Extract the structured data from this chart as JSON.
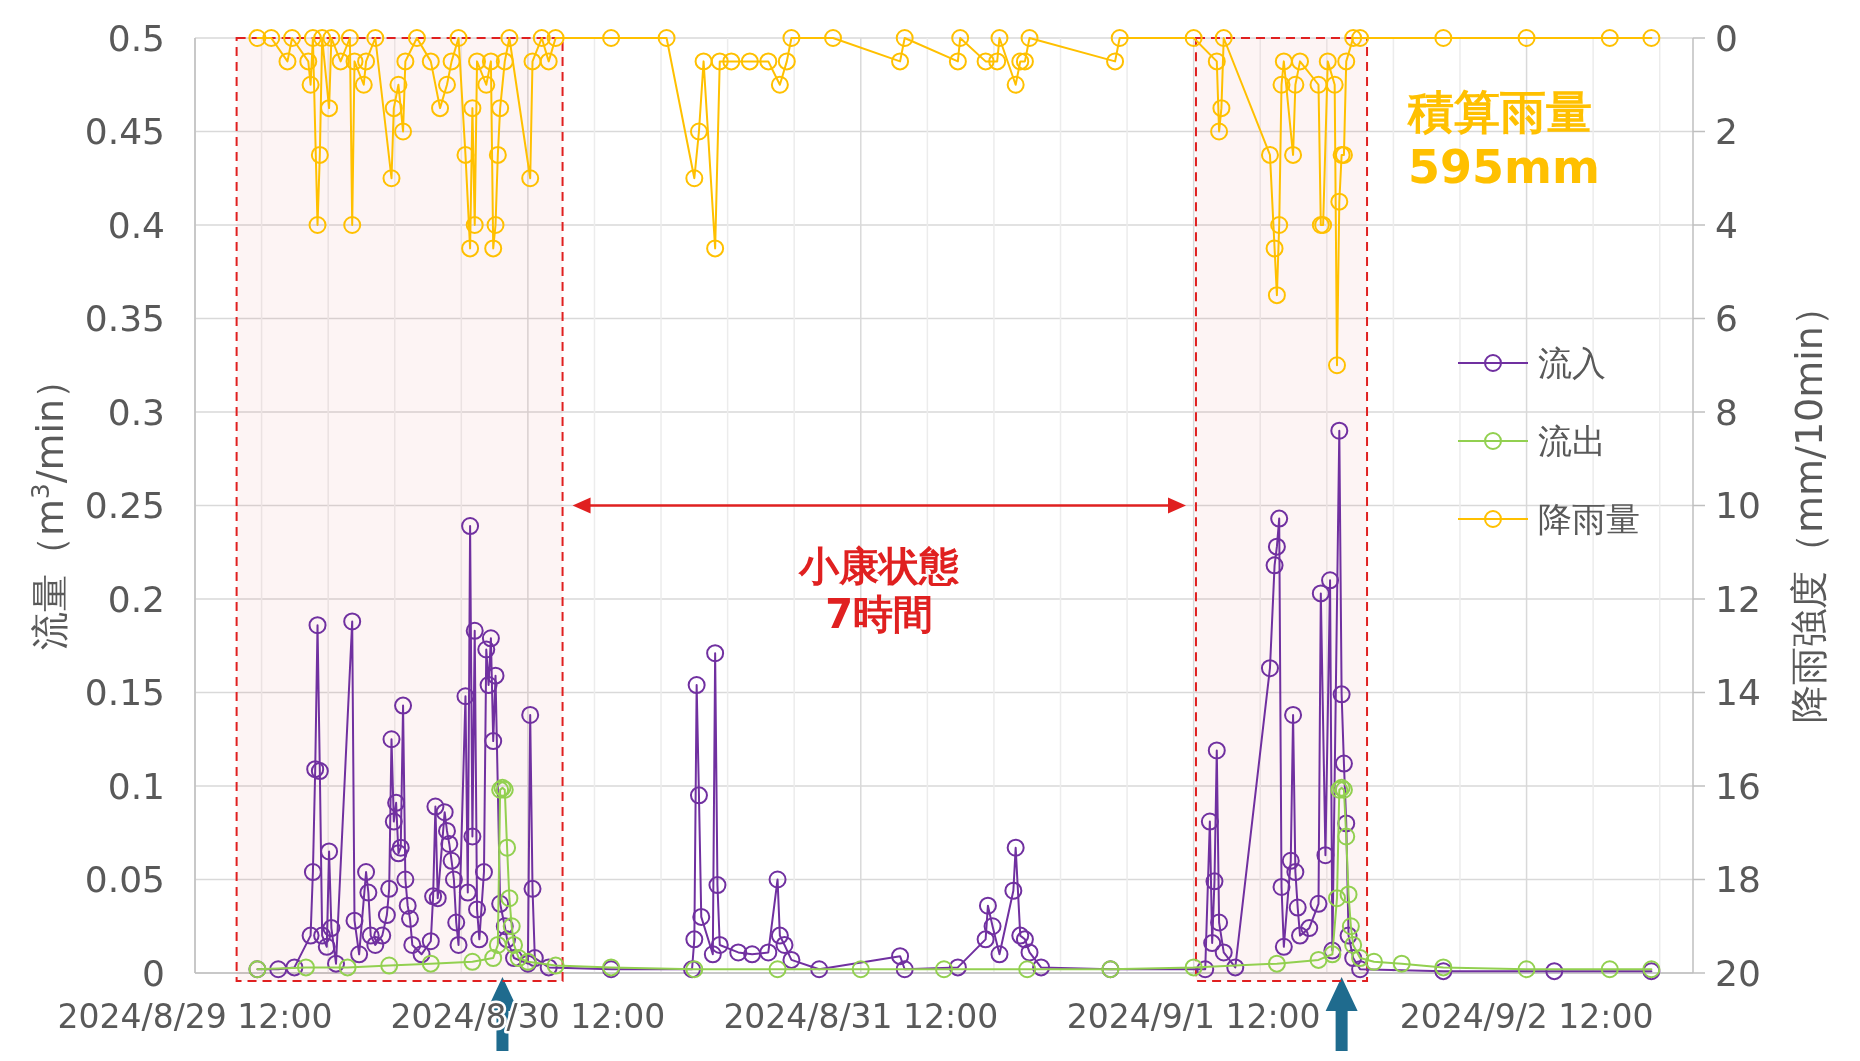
{
  "chart_data": {
    "type": "line",
    "xlabel": null,
    "ylabel": "流量（m$^{3}$/min）",
    "y2label": "降雨強度（mm/10min）",
    "xlim": [
      "2024-08-29T12:00",
      "2024-09-03T00:00"
    ],
    "xticks": [
      {
        "value": "2024-08-29T12:00",
        "label": "2024/8/29 12:00"
      },
      {
        "value": "2024-08-29T16:48",
        "label": null
      },
      {
        "value": "2024-08-29T21:36",
        "label": null
      },
      {
        "value": "2024-08-30T02:24",
        "label": null
      },
      {
        "value": "2024-08-30T07:12",
        "label": null
      },
      {
        "value": "2024-08-30T12:00",
        "label": "2024/8/30 12:00"
      },
      {
        "value": "2024-08-30T16:48",
        "label": null
      },
      {
        "value": "2024-08-30T21:36",
        "label": null
      },
      {
        "value": "2024-08-31T02:24",
        "label": null
      },
      {
        "value": "2024-08-31T07:12",
        "label": null
      },
      {
        "value": "2024-08-31T12:00",
        "label": "2024/8/31 12:00"
      },
      {
        "value": "2024-08-31T16:48",
        "label": null
      },
      {
        "value": "2024-08-31T21:36",
        "label": null
      },
      {
        "value": "2024-09-01T02:24",
        "label": null
      },
      {
        "value": "2024-09-01T07:12",
        "label": null
      },
      {
        "value": "2024-09-01T12:00",
        "label": "2024/9/1 12:00"
      },
      {
        "value": "2024-09-01T16:48",
        "label": null
      },
      {
        "value": "2024-09-01T21:36",
        "label": null
      },
      {
        "value": "2024-09-02T02:24",
        "label": null
      },
      {
        "value": "2024-09-02T07:12",
        "label": null
      },
      {
        "value": "2024-09-02T12:00",
        "label": "2024/9/2 12:00"
      },
      {
        "value": "2024-09-02T16:48",
        "label": null
      },
      {
        "value": "2024-09-02T21:36",
        "label": null
      }
    ],
    "ylim": [
      0,
      0.5
    ],
    "yticks": [
      0,
      0.05,
      0.1,
      0.15,
      0.2,
      0.25,
      0.3,
      0.35,
      0.4,
      0.45,
      0.5
    ],
    "y2lim": [
      20,
      0
    ],
    "y2ticks": [
      0,
      2,
      4,
      6,
      8,
      10,
      12,
      14,
      16,
      18,
      20
    ],
    "grid": true,
    "legend": "right",
    "marker": "circle",
    "line_style": "solid",
    "series": [
      {
        "name": "流入",
        "color": "#7030a0",
        "x": [
          "2024-08-29T16:30",
          "2024-08-29T18:00",
          "2024-08-29T19:10",
          "2024-08-29T20:20",
          "2024-08-29T20:30",
          "2024-08-29T20:40",
          "2024-08-29T20:50",
          "2024-08-29T21:00",
          "2024-08-29T21:10",
          "2024-08-29T21:30",
          "2024-08-29T21:40",
          "2024-08-29T21:50",
          "2024-08-29T22:10",
          "2024-08-29T23:20",
          "2024-08-29T23:30",
          "2024-08-29T23:50",
          "2024-08-30T00:20",
          "2024-08-30T00:30",
          "2024-08-30T00:40",
          "2024-08-30T01:00",
          "2024-08-30T01:30",
          "2024-08-30T01:50",
          "2024-08-30T02:00",
          "2024-08-30T02:10",
          "2024-08-30T02:20",
          "2024-08-30T02:30",
          "2024-08-30T02:40",
          "2024-08-30T02:50",
          "2024-08-30T03:00",
          "2024-08-30T03:10",
          "2024-08-30T03:20",
          "2024-08-30T03:30",
          "2024-08-30T03:40",
          "2024-08-30T04:20",
          "2024-08-30T05:00",
          "2024-08-30T05:10",
          "2024-08-30T05:20",
          "2024-08-30T05:30",
          "2024-08-30T06:00",
          "2024-08-30T06:10",
          "2024-08-30T06:20",
          "2024-08-30T06:30",
          "2024-08-30T06:40",
          "2024-08-30T06:50",
          "2024-08-30T07:00",
          "2024-08-30T07:30",
          "2024-08-30T07:40",
          "2024-08-30T07:50",
          "2024-08-30T08:00",
          "2024-08-30T08:10",
          "2024-08-30T08:20",
          "2024-08-30T08:30",
          "2024-08-30T08:50",
          "2024-08-30T09:00",
          "2024-08-30T09:10",
          "2024-08-30T09:20",
          "2024-08-30T09:30",
          "2024-08-30T09:40",
          "2024-08-30T10:00",
          "2024-08-30T10:20",
          "2024-08-30T10:30",
          "2024-08-30T11:00",
          "2024-08-30T12:00",
          "2024-08-30T12:10",
          "2024-08-30T12:20",
          "2024-08-30T12:30",
          "2024-08-30T13:30",
          "2024-08-30T18:00",
          "2024-08-30T23:50",
          "2024-08-31T00:00",
          "2024-08-31T00:10",
          "2024-08-31T00:20",
          "2024-08-31T00:30",
          "2024-08-31T01:20",
          "2024-08-31T01:30",
          "2024-08-31T01:40",
          "2024-08-31T01:50",
          "2024-08-31T03:10",
          "2024-08-31T04:10",
          "2024-08-31T05:20",
          "2024-08-31T06:00",
          "2024-08-31T06:10",
          "2024-08-31T06:30",
          "2024-08-31T07:00",
          "2024-08-31T09:00",
          "2024-08-31T14:50",
          "2024-08-31T15:10",
          "2024-08-31T19:00",
          "2024-08-31T21:00",
          "2024-08-31T21:10",
          "2024-08-31T21:30",
          "2024-08-31T22:00",
          "2024-08-31T23:00",
          "2024-08-31T23:10",
          "2024-08-31T23:30",
          "2024-08-31T23:50",
          "2024-09-01T00:10",
          "2024-09-01T01:00",
          "2024-09-01T06:00",
          "2024-09-01T12:50",
          "2024-09-01T13:10",
          "2024-09-01T13:20",
          "2024-09-01T13:30",
          "2024-09-01T13:40",
          "2024-09-01T13:50",
          "2024-09-01T14:10",
          "2024-09-01T15:00",
          "2024-09-01T17:30",
          "2024-09-01T17:50",
          "2024-09-01T18:00",
          "2024-09-01T18:10",
          "2024-09-01T18:20",
          "2024-09-01T18:30",
          "2024-09-01T19:00",
          "2024-09-01T19:10",
          "2024-09-01T19:20",
          "2024-09-01T19:30",
          "2024-09-01T19:40",
          "2024-09-01T20:20",
          "2024-09-01T21:00",
          "2024-09-01T21:10",
          "2024-09-01T21:30",
          "2024-09-01T21:50",
          "2024-09-01T22:00",
          "2024-09-01T22:30",
          "2024-09-01T22:40",
          "2024-09-01T22:50",
          "2024-09-01T23:00",
          "2024-09-01T23:10",
          "2024-09-01T23:30",
          "2024-09-02T00:00",
          "2024-09-02T06:00",
          "2024-09-02T14:00",
          "2024-09-02T21:00"
        ],
        "values": [
          0.002,
          0.002,
          0.003,
          0.02,
          0.054,
          0.109,
          0.186,
          0.108,
          0.02,
          0.014,
          0.065,
          0.024,
          0.005,
          0.188,
          0.028,
          0.01,
          0.054,
          0.043,
          0.02,
          0.015,
          0.02,
          0.031,
          0.045,
          0.125,
          0.081,
          0.091,
          0.064,
          0.067,
          0.143,
          0.05,
          0.036,
          0.029,
          0.015,
          0.01,
          0.017,
          0.041,
          0.089,
          0.04,
          0.086,
          0.076,
          0.069,
          0.06,
          0.05,
          0.027,
          0.015,
          0.148,
          0.043,
          0.239,
          0.073,
          0.183,
          0.034,
          0.018,
          0.054,
          0.173,
          0.154,
          0.179,
          0.124,
          0.159,
          0.037,
          0.025,
          0.018,
          0.008,
          0.005,
          0.138,
          0.045,
          0.008,
          0.003,
          0.002,
          0.002,
          0.018,
          0.154,
          0.095,
          0.03,
          0.01,
          0.171,
          0.047,
          0.015,
          0.011,
          0.01,
          0.011,
          0.05,
          0.02,
          0.015,
          0.007,
          0.002,
          0.009,
          0.002,
          0.003,
          0.018,
          0.036,
          0.025,
          0.01,
          0.044,
          0.067,
          0.02,
          0.018,
          0.011,
          0.003,
          0.002,
          0.002,
          0.081,
          0.016,
          0.049,
          0.119,
          0.027,
          0.011,
          0.003,
          0.163,
          0.218,
          0.228,
          0.243,
          0.046,
          0.014,
          0.06,
          0.138,
          0.054,
          0.035,
          0.02,
          0.024,
          0.037,
          0.203,
          0.063,
          0.21,
          0.012,
          0.29,
          0.149,
          0.112,
          0.08,
          0.02,
          0.008,
          0.002,
          0.001,
          0.001,
          0.001
        ]
      },
      {
        "name": "流出",
        "color": "#92d050",
        "x": [
          "2024-08-29T16:30",
          "2024-08-29T20:00",
          "2024-08-29T23:00",
          "2024-08-30T02:00",
          "2024-08-30T05:00",
          "2024-08-30T08:00",
          "2024-08-30T09:30",
          "2024-08-30T09:50",
          "2024-08-30T10:00",
          "2024-08-30T10:10",
          "2024-08-30T10:20",
          "2024-08-30T10:30",
          "2024-08-30T10:40",
          "2024-08-30T10:50",
          "2024-08-30T11:00",
          "2024-08-30T11:20",
          "2024-08-30T12:00",
          "2024-08-30T14:00",
          "2024-08-30T18:00",
          "2024-08-31T00:00",
          "2024-08-31T06:00",
          "2024-08-31T12:00",
          "2024-08-31T18:00",
          "2024-09-01T00:00",
          "2024-09-01T06:00",
          "2024-09-01T12:00",
          "2024-09-01T18:00",
          "2024-09-01T21:00",
          "2024-09-01T22:00",
          "2024-09-01T22:20",
          "2024-09-01T22:30",
          "2024-09-01T22:40",
          "2024-09-01T22:50",
          "2024-09-01T23:00",
          "2024-09-01T23:10",
          "2024-09-01T23:20",
          "2024-09-01T23:30",
          "2024-09-02T00:00",
          "2024-09-02T01:00",
          "2024-09-02T03:00",
          "2024-09-02T06:00",
          "2024-09-02T12:00",
          "2024-09-02T18:00",
          "2024-09-02T21:00"
        ],
        "values": [
          0.002,
          0.003,
          0.003,
          0.004,
          0.005,
          0.006,
          0.008,
          0.015,
          0.098,
          0.099,
          0.098,
          0.067,
          0.04,
          0.025,
          0.015,
          0.008,
          0.006,
          0.004,
          0.003,
          0.002,
          0.002,
          0.002,
          0.002,
          0.002,
          0.002,
          0.003,
          0.005,
          0.007,
          0.01,
          0.04,
          0.098,
          0.099,
          0.098,
          0.073,
          0.042,
          0.025,
          0.015,
          0.008,
          0.006,
          0.005,
          0.003,
          0.002,
          0.002,
          0.002
        ]
      },
      {
        "name": "降雨量",
        "color": "#ffc000",
        "axis": "y2",
        "x": [
          "2024-08-29T16:30",
          "2024-08-29T17:30",
          "2024-08-29T18:40",
          "2024-08-29T19:00",
          "2024-08-29T20:10",
          "2024-08-29T20:20",
          "2024-08-29T20:30",
          "2024-08-29T20:50",
          "2024-08-29T21:00",
          "2024-08-29T21:10",
          "2024-08-29T21:40",
          "2024-08-29T21:50",
          "2024-08-29T22:30",
          "2024-08-29T23:10",
          "2024-08-29T23:20",
          "2024-08-29T23:30",
          "2024-08-30T00:10",
          "2024-08-30T00:20",
          "2024-08-30T01:00",
          "2024-08-30T02:10",
          "2024-08-30T02:20",
          "2024-08-30T02:40",
          "2024-08-30T03:00",
          "2024-08-30T03:10",
          "2024-08-30T04:00",
          "2024-08-30T05:00",
          "2024-08-30T05:40",
          "2024-08-30T06:10",
          "2024-08-30T06:30",
          "2024-08-30T07:00",
          "2024-08-30T07:30",
          "2024-08-30T07:50",
          "2024-08-30T08:00",
          "2024-08-30T08:10",
          "2024-08-30T08:20",
          "2024-08-30T09:00",
          "2024-08-30T09:20",
          "2024-08-30T09:30",
          "2024-08-30T09:40",
          "2024-08-30T09:50",
          "2024-08-30T10:00",
          "2024-08-30T10:20",
          "2024-08-30T10:40",
          "2024-08-30T12:10",
          "2024-08-30T12:20",
          "2024-08-30T13:00",
          "2024-08-30T13:30",
          "2024-08-30T14:00",
          "2024-08-30T18:00",
          "2024-08-30T22:00",
          "2024-08-31T00:00",
          "2024-08-31T00:20",
          "2024-08-31T00:40",
          "2024-08-31T01:30",
          "2024-08-31T01:50",
          "2024-08-31T02:40",
          "2024-08-31T04:00",
          "2024-08-31T05:20",
          "2024-08-31T06:10",
          "2024-08-31T06:40",
          "2024-08-31T07:00",
          "2024-08-31T10:00",
          "2024-08-31T14:50",
          "2024-08-31T15:10",
          "2024-08-31T19:00",
          "2024-08-31T19:10",
          "2024-08-31T21:00",
          "2024-08-31T21:50",
          "2024-08-31T22:00",
          "2024-08-31T23:10",
          "2024-08-31T23:30",
          "2024-08-31T23:50",
          "2024-09-01T00:10",
          "2024-09-01T06:20",
          "2024-09-01T06:40",
          "2024-09-01T12:00",
          "2024-09-01T13:40",
          "2024-09-01T13:50",
          "2024-09-01T14:00",
          "2024-09-01T14:10",
          "2024-09-01T17:30",
          "2024-09-01T17:50",
          "2024-09-01T18:00",
          "2024-09-01T18:10",
          "2024-09-01T18:20",
          "2024-09-01T18:30",
          "2024-09-01T19:10",
          "2024-09-01T19:20",
          "2024-09-01T19:40",
          "2024-09-01T21:00",
          "2024-09-01T21:10",
          "2024-09-01T21:20",
          "2024-09-01T21:40",
          "2024-09-01T22:10",
          "2024-09-01T22:20",
          "2024-09-01T22:30",
          "2024-09-01T22:40",
          "2024-09-01T22:50",
          "2024-09-01T23:00",
          "2024-09-01T23:30",
          "2024-09-02T00:00",
          "2024-09-02T06:00",
          "2024-09-02T12:00",
          "2024-09-02T18:00",
          "2024-09-02T21:00"
        ],
        "values": [
          0,
          0,
          0.5,
          0,
          0.5,
          1,
          0,
          4,
          2.5,
          0,
          1.5,
          0,
          0.5,
          0,
          4,
          0.5,
          1,
          0.5,
          0,
          3,
          1.5,
          1,
          2,
          0.5,
          0,
          0.5,
          1.5,
          1,
          0.5,
          0,
          2.5,
          4.5,
          1.5,
          4,
          0.5,
          1,
          0.5,
          4.5,
          4,
          2.5,
          1.5,
          0.5,
          0,
          3,
          0.5,
          0,
          0.5,
          0,
          0,
          0,
          3,
          2,
          0.5,
          4.5,
          0.5,
          0.5,
          0.5,
          0.5,
          1,
          0.5,
          0,
          0,
          0.5,
          0,
          0.5,
          0,
          0.5,
          0.5,
          0,
          1,
          0.5,
          0.5,
          0,
          0.5,
          0,
          0,
          0.5,
          2,
          1.5,
          0,
          2.5,
          4.5,
          5.5,
          4,
          1,
          0.5,
          2.5,
          1,
          0.5,
          1,
          4,
          4,
          0.5,
          1,
          7,
          3.5,
          2.5,
          2.5,
          0.5,
          0,
          0,
          0,
          0,
          0,
          0
        ]
      }
    ],
    "bands": [
      {
        "axis": "x",
        "from": "2024-08-29T15:00",
        "to": "2024-08-30T14:30",
        "color": "#e02020"
      },
      {
        "axis": "x",
        "from": "2024-09-01T12:10",
        "to": "2024-09-02T00:30",
        "color": "#e02020"
      }
    ],
    "annotations": [
      "積算雨量\n595mm",
      "小康状態\n7時間"
    ]
  }
}
